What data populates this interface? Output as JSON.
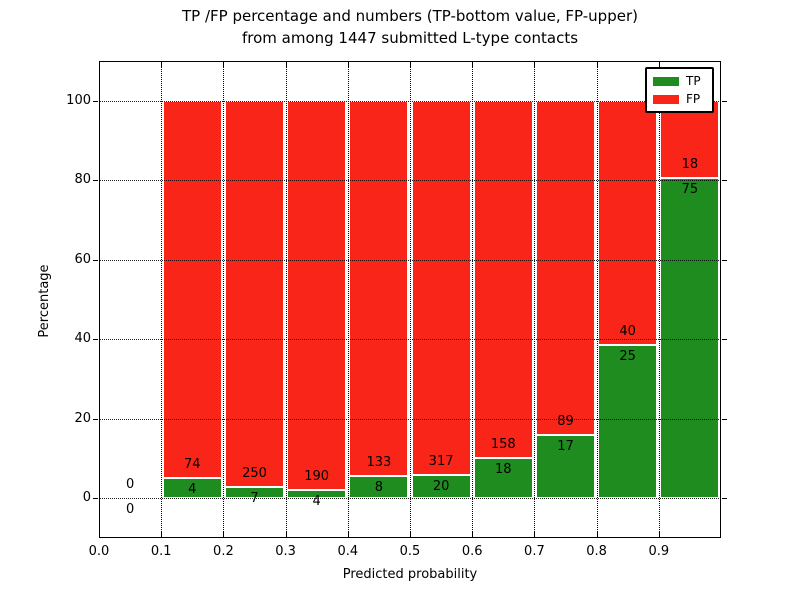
{
  "chart_data": {
    "type": "bar",
    "stacked": true,
    "normalized": "percent_of_bin_total",
    "title": "TP /FP percentage and numbers (TP-bottom value, FP-upper)",
    "subtitle": "from among 1447 submitted L-type contacts",
    "xlabel": "Predicted probability",
    "ylabel": "Percentage",
    "total_contacts": 1447,
    "xlim": [
      0.0,
      1.0
    ],
    "ylim": [
      -10,
      110
    ],
    "xticks": [
      "0.0",
      "0.1",
      "0.2",
      "0.3",
      "0.4",
      "0.5",
      "0.6",
      "0.7",
      "0.8",
      "0.9"
    ],
    "yticks": [
      0,
      20,
      40,
      60,
      80,
      100
    ],
    "grid": "dotted",
    "legend": {
      "position": "upper-right",
      "entries": [
        {
          "label": "TP",
          "color": "#1f8c1f"
        },
        {
          "label": "FP",
          "color": "#f92519"
        }
      ]
    },
    "bins": [
      {
        "range": [
          0.0,
          0.1
        ],
        "tp": 0,
        "fp": 0
      },
      {
        "range": [
          0.1,
          0.2
        ],
        "tp": 4,
        "fp": 74
      },
      {
        "range": [
          0.2,
          0.3
        ],
        "tp": 7,
        "fp": 250
      },
      {
        "range": [
          0.3,
          0.4
        ],
        "tp": 4,
        "fp": 190
      },
      {
        "range": [
          0.4,
          0.5
        ],
        "tp": 8,
        "fp": 133
      },
      {
        "range": [
          0.5,
          0.6
        ],
        "tp": 20,
        "fp": 317
      },
      {
        "range": [
          0.6,
          0.7
        ],
        "tp": 18,
        "fp": 158
      },
      {
        "range": [
          0.7,
          0.8
        ],
        "tp": 17,
        "fp": 89
      },
      {
        "range": [
          0.8,
          0.9
        ],
        "tp": 25,
        "fp": 40
      },
      {
        "range": [
          0.9,
          1.0
        ],
        "tp": 75,
        "fp": 18
      }
    ]
  },
  "colors": {
    "tp": "#1f8c1f",
    "fp": "#f92519",
    "grid": "#000000",
    "text": "#000000",
    "background": "#ffffff"
  }
}
